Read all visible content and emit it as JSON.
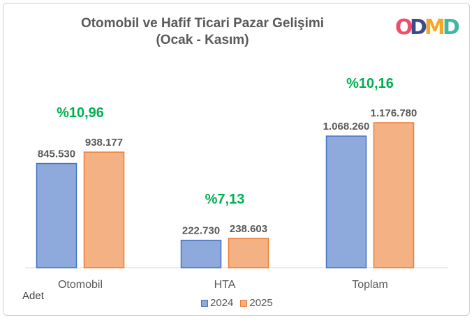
{
  "header": {
    "title_line1": "Otomobil ve Hafif Ticari Pazar Gelişimi",
    "title_line2": "(Ocak - Kasım)",
    "logo_text": "ODMD"
  },
  "colors": {
    "series_2024_fill": "#8ea9db",
    "series_2024_border": "#4472c4",
    "series_2025_fill": "#f4b183",
    "series_2025_border": "#ed7d31",
    "growth_label": "#00b050",
    "value_label": "#595959",
    "logo": [
      "#ef4e6a",
      "#3b4a8c",
      "#f5a623",
      "#3fb8a3"
    ]
  },
  "footer": {
    "unit_label": "Adet"
  },
  "chart_data": {
    "type": "bar",
    "title": "Otomobil ve Hafif Ticari Pazar Gelişimi (Ocak - Kasım)",
    "categories": [
      "Otomobil",
      "HTA",
      "Toplam"
    ],
    "series": [
      {
        "name": "2024",
        "values": [
          845530,
          222730,
          1068260
        ],
        "labels": [
          "845.530",
          "222.730",
          "1.068.260"
        ]
      },
      {
        "name": "2025",
        "values": [
          938177,
          238603,
          1176780
        ],
        "labels": [
          "938.177",
          "238.603",
          "1.176.780"
        ]
      }
    ],
    "growth_labels": [
      "%10,96",
      "%7,13",
      "%10,16"
    ],
    "ylabel": "Adet",
    "ylim": [
      0,
      1200000
    ],
    "grid": false,
    "legend_position": "bottom"
  }
}
